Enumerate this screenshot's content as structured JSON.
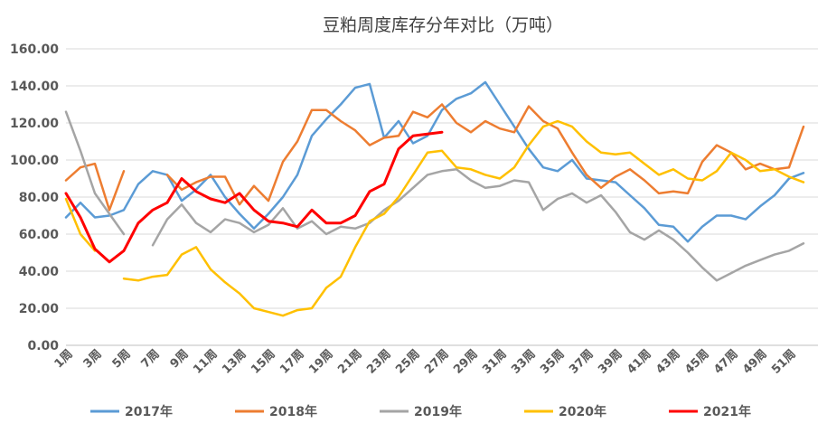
{
  "chart_data": {
    "type": "line",
    "title": "豆粕周度库存分年对比（万吨）",
    "xlabel": "",
    "ylabel": "",
    "ylim": [
      0,
      160
    ],
    "yticks": [
      "0.00",
      "20.00",
      "40.00",
      "60.00",
      "80.00",
      "100.00",
      "120.00",
      "140.00",
      "160.00"
    ],
    "xtick_labels": [
      "1周",
      "3周",
      "5周",
      "7周",
      "9周",
      "11周",
      "13周",
      "15周",
      "17周",
      "19周",
      "21周",
      "23周",
      "25周",
      "27周",
      "29周",
      "31周",
      "33周",
      "35周",
      "37周",
      "39周",
      "41周",
      "43周",
      "45周",
      "47周",
      "49周",
      "51周"
    ],
    "x": [
      1,
      2,
      3,
      4,
      5,
      6,
      7,
      8,
      9,
      10,
      11,
      12,
      13,
      14,
      15,
      16,
      17,
      18,
      19,
      20,
      21,
      22,
      23,
      24,
      25,
      26,
      27,
      28,
      29,
      30,
      31,
      32,
      33,
      34,
      35,
      36,
      37,
      38,
      39,
      40,
      41,
      42,
      43,
      44,
      45,
      46,
      47,
      48,
      49,
      50,
      51,
      52,
      53
    ],
    "grid": "horizontal",
    "legend_position": "bottom",
    "series": [
      {
        "name": "2017年",
        "color": "#5B9BD5",
        "values": [
          69,
          77,
          69,
          70,
          73,
          87,
          94,
          92,
          78,
          84,
          92,
          80,
          71,
          63,
          71,
          80,
          92,
          113,
          122,
          130,
          139,
          141,
          112,
          121,
          109,
          113,
          127,
          133,
          136,
          142,
          130,
          118,
          106,
          96,
          94,
          100,
          90,
          89,
          88,
          81,
          74,
          65,
          64,
          56,
          64,
          70,
          70,
          68,
          75,
          81,
          90,
          93,
          null
        ]
      },
      {
        "name": "2018年",
        "color": "#ED7D31",
        "values": [
          89,
          96,
          98,
          73,
          94,
          null,
          null,
          null,
          null,
          null,
          null,
          null,
          null,
          null,
          null,
          null,
          null,
          null,
          null,
          null,
          null,
          null,
          null,
          null,
          null,
          null,
          null,
          null,
          null,
          null,
          null,
          null,
          null,
          null,
          null,
          null,
          null,
          null,
          null,
          null,
          null,
          null,
          null,
          null,
          null,
          null,
          null,
          null,
          null,
          null,
          null,
          null,
          null
        ],
        "values_cont": [
          null,
          null,
          null,
          null,
          null,
          null,
          null,
          92,
          84,
          88,
          91,
          91,
          76,
          86,
          78,
          99,
          110,
          127,
          127,
          121,
          116,
          108,
          112,
          113,
          126,
          123,
          130,
          120,
          115,
          121,
          117,
          115,
          129,
          121,
          117,
          104,
          92,
          85,
          91,
          95,
          89,
          82,
          83,
          82,
          99,
          108,
          104,
          95,
          98,
          95,
          96,
          118,
          null
        ]
      },
      {
        "name": "2019年",
        "color": "#A5A5A5",
        "values": [
          126,
          105,
          82,
          71,
          60,
          null,
          54,
          68,
          76,
          66,
          61,
          68,
          66,
          61,
          65,
          74,
          63,
          67,
          60,
          64,
          63,
          66,
          73,
          78,
          85,
          92,
          94,
          95,
          89,
          85,
          86,
          89,
          88,
          73,
          79,
          82,
          77,
          81,
          72,
          61,
          57,
          62,
          57,
          50,
          42,
          35,
          39,
          43,
          46,
          49,
          51,
          55,
          null
        ]
      },
      {
        "name": "2020年",
        "color": "#FFC000",
        "values": [
          79,
          60,
          51,
          null,
          36,
          35,
          37,
          38,
          49,
          53,
          41,
          34,
          28,
          20,
          18,
          16,
          19,
          20,
          31,
          37,
          53,
          67,
          71,
          80,
          92,
          104,
          105,
          96,
          95,
          92,
          90,
          96,
          108,
          118,
          121,
          118,
          110,
          104,
          103,
          104,
          98,
          92,
          95,
          90,
          89,
          94,
          104,
          100,
          94,
          95,
          91,
          88,
          null
        ]
      },
      {
        "name": "2021年",
        "color": "#FF0000",
        "values": [
          82,
          69,
          52,
          45,
          51,
          66,
          73,
          77,
          90,
          83,
          79,
          77,
          82,
          73,
          67,
          66,
          64,
          73,
          66,
          66,
          70,
          83,
          87,
          106,
          113,
          114,
          115,
          null,
          null,
          null,
          null,
          null,
          null,
          null,
          null,
          null,
          null,
          null,
          null,
          null,
          null,
          null,
          null,
          null,
          null,
          null,
          null,
          null,
          null,
          null,
          null,
          null,
          null
        ]
      }
    ]
  }
}
